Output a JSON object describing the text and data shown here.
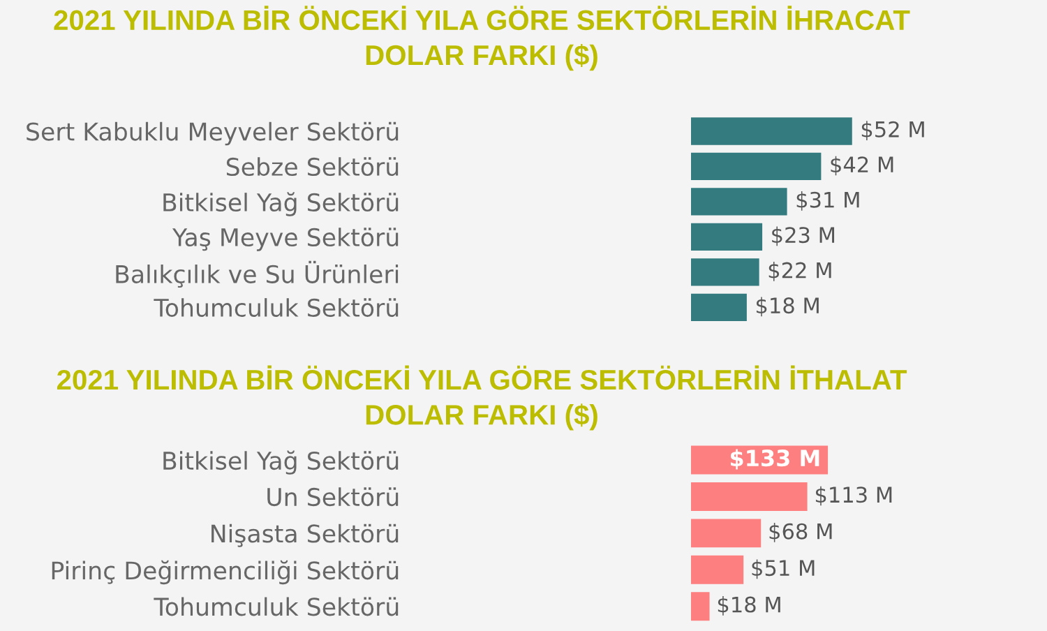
{
  "chart_data": [
    {
      "type": "bar",
      "orientation": "horizontal",
      "title": "2021 YILINDA BİR ÖNCEKİ YILA GÖRE SEKTÖRLERİN İHRACAT\nDOLAR FARKI ($)",
      "categories": [
        "Sert Kabuklu Meyveler Sektörü",
        "Sebze Sektörü",
        "Bitkisel Yağ Sektörü",
        "Yaş Meyve Sektörü",
        "Balıkçılık ve Su Ürünleri",
        "Tohumculuk Sektörü"
      ],
      "values": [
        52,
        42,
        31,
        23,
        22,
        18
      ],
      "color": "#347b7f",
      "value_labels": [
        "$52 M",
        "$42 M",
        "$31 M",
        "$23 M",
        "$22 M",
        "$18 M"
      ]
    },
    {
      "type": "bar",
      "orientation": "horizontal",
      "title": "2021 YILINDA BİR ÖNCEKİ YILA GÖRE SEKTÖRLERİN İTHALAT\nDOLAR FARKI ($)",
      "categories": [
        "Bitkisel Yağ Sektörü",
        "Un Sektörü",
        "Nişasta Sektörü",
        "Pirinç Değirmenciliği Sektörü",
        "Tohumculuk Sektörü"
      ],
      "values": [
        133,
        113,
        68,
        51,
        18
      ],
      "color": "#fd7f7f",
      "value_labels": [
        "$133 M",
        "$113 M",
        "$68 M",
        "$51 M",
        "$18 M"
      ]
    }
  ]
}
